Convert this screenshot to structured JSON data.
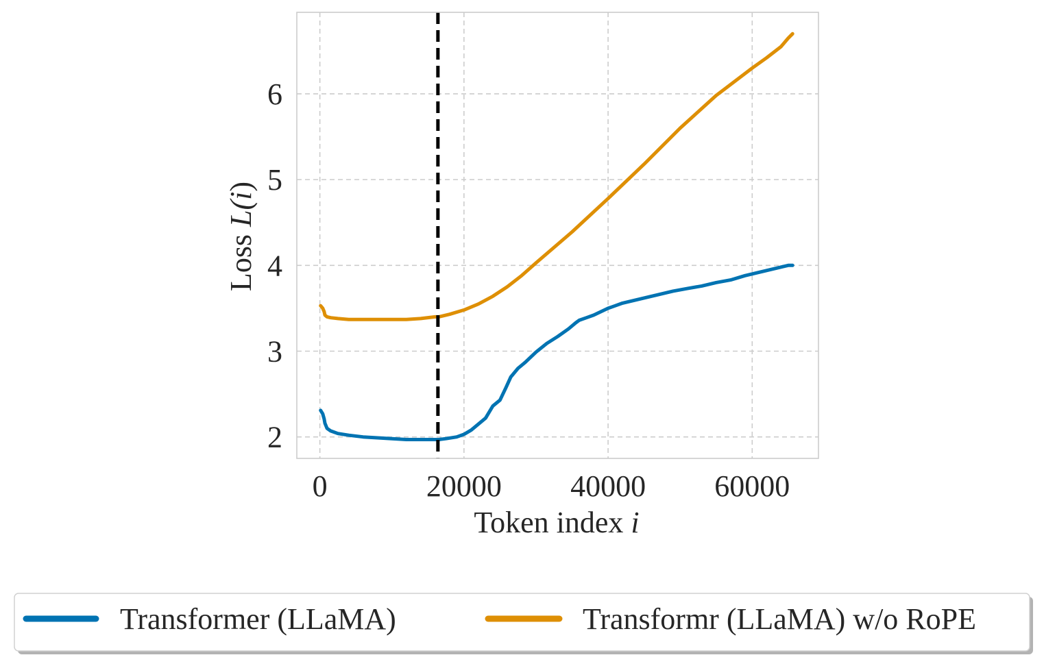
{
  "chart_data": {
    "type": "line",
    "xlabel": "Token index",
    "xlabel_var": "i",
    "ylabel_prefix": "Loss ",
    "ylabel_math": "L(",
    "ylabel_var": "i",
    "ylabel_close": ")",
    "xlim": [
      -3200,
      69200
    ],
    "ylim": [
      1.75,
      6.95
    ],
    "xticks": [
      0,
      20000,
      40000,
      60000
    ],
    "xtick_labels": [
      "0",
      "20000",
      "40000",
      "60000"
    ],
    "yticks": [
      2,
      3,
      4,
      5,
      6
    ],
    "ytick_labels": [
      "2",
      "3",
      "4",
      "5",
      "6"
    ],
    "grid": true,
    "vline": {
      "x": 16384,
      "style": "dashed",
      "color": "#000000"
    },
    "legend_position": "bottom-center",
    "series": [
      {
        "name": "Transformer (LLaMA)",
        "color": "#0173b2",
        "x": [
          100,
          400,
          600,
          700,
          1000,
          1500,
          2500,
          4000,
          6000,
          8000,
          10000,
          12000,
          14000,
          16000,
          16500,
          17500,
          19000,
          20000,
          21000,
          22000,
          23000,
          24000,
          25000,
          25800,
          26500,
          27500,
          28500,
          30000,
          31500,
          33000,
          34500,
          35500,
          36000,
          37000,
          38000,
          39000,
          40000,
          41000,
          42000,
          43000,
          44000,
          45000,
          47000,
          49000,
          51000,
          53000,
          55000,
          57000,
          59000,
          60000,
          61000,
          62000,
          63000,
          64000,
          65000,
          65600
        ],
        "y": [
          2.31,
          2.27,
          2.21,
          2.16,
          2.1,
          2.07,
          2.04,
          2.02,
          2.0,
          1.99,
          1.98,
          1.97,
          1.97,
          1.97,
          1.97,
          1.98,
          2.0,
          2.03,
          2.08,
          2.15,
          2.22,
          2.36,
          2.43,
          2.57,
          2.7,
          2.8,
          2.87,
          2.99,
          3.09,
          3.17,
          3.26,
          3.33,
          3.36,
          3.39,
          3.42,
          3.46,
          3.5,
          3.53,
          3.56,
          3.58,
          3.6,
          3.62,
          3.66,
          3.7,
          3.73,
          3.76,
          3.8,
          3.83,
          3.88,
          3.9,
          3.92,
          3.94,
          3.96,
          3.98,
          4.0,
          4.0
        ]
      },
      {
        "name": "Transformr (LLaMA) w/o RoPE",
        "color": "#de8f05",
        "x": [
          100,
          400,
          600,
          700,
          1000,
          1500,
          2500,
          4000,
          6000,
          8000,
          10000,
          12000,
          14000,
          16000,
          16500,
          18000,
          20000,
          22000,
          24000,
          26000,
          28000,
          30000,
          35000,
          40000,
          45000,
          50000,
          55000,
          60000,
          62000,
          64000,
          65000,
          65600
        ],
        "y": [
          3.53,
          3.5,
          3.46,
          3.42,
          3.4,
          3.39,
          3.38,
          3.37,
          3.37,
          3.37,
          3.37,
          3.37,
          3.38,
          3.4,
          3.4,
          3.43,
          3.48,
          3.55,
          3.64,
          3.75,
          3.88,
          4.03,
          4.39,
          4.78,
          5.18,
          5.6,
          5.98,
          6.3,
          6.42,
          6.55,
          6.65,
          6.7
        ]
      }
    ]
  }
}
